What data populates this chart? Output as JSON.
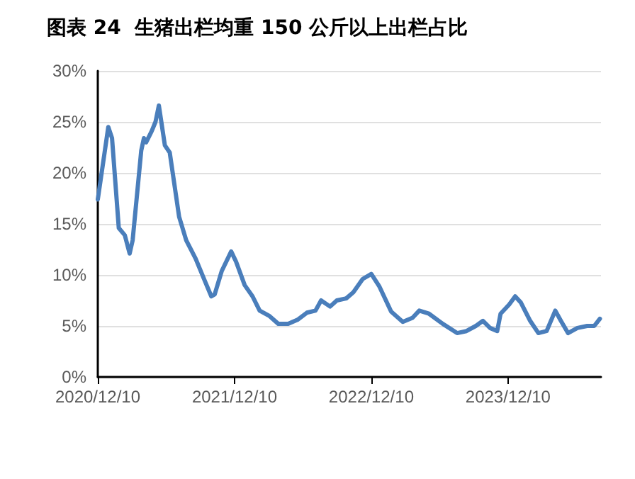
{
  "chart_data": {
    "type": "line",
    "title": "图表 24  生猪出栏均重 150 公斤以上出栏占比",
    "x": [
      "2020-12-10",
      "2021-01-07",
      "2021-01-17",
      "2021-02-04",
      "2021-02-20",
      "2021-03-05",
      "2021-03-13",
      "2021-04-05",
      "2021-04-12",
      "2021-04-18",
      "2021-05-03",
      "2021-05-13",
      "2021-05-22",
      "2021-06-07",
      "2021-06-20",
      "2021-07-15",
      "2021-08-03",
      "2021-08-28",
      "2021-09-23",
      "2021-10-09",
      "2021-10-18",
      "2021-11-06",
      "2021-12-01",
      "2021-12-14",
      "2022-01-06",
      "2022-01-27",
      "2022-02-15",
      "2022-03-12",
      "2022-04-06",
      "2022-05-02",
      "2022-05-27",
      "2022-06-21",
      "2022-07-14",
      "2022-07-29",
      "2022-08-22",
      "2022-09-09",
      "2022-10-04",
      "2022-10-23",
      "2022-11-17",
      "2022-12-10",
      "2022-12-31",
      "2023-02-01",
      "2023-03-04",
      "2023-03-30",
      "2023-04-17",
      "2023-05-13",
      "2023-06-19",
      "2023-07-27",
      "2023-08-21",
      "2023-09-15",
      "2023-10-04",
      "2023-10-23",
      "2023-11-11",
      "2023-11-20",
      "2023-12-13",
      "2023-12-29",
      "2024-01-13",
      "2024-02-07",
      "2024-02-29",
      "2024-03-22",
      "2024-04-14",
      "2024-04-29",
      "2024-05-18",
      "2024-06-12",
      "2024-07-08",
      "2024-07-27",
      "2024-08-11"
    ],
    "series": [
      {
        "color": "#4a7ebb",
        "values": [
          17.4,
          24.5,
          23.4,
          14.6,
          13.9,
          12.1,
          13.4,
          22.2,
          23.4,
          23.0,
          24.1,
          25.0,
          26.6,
          22.7,
          22.0,
          15.7,
          13.4,
          11.6,
          9.3,
          7.9,
          8.1,
          10.4,
          12.3,
          11.3,
          9.0,
          7.9,
          6.5,
          6.0,
          5.2,
          5.2,
          5.6,
          6.3,
          6.5,
          7.5,
          6.9,
          7.5,
          7.7,
          8.3,
          9.6,
          10.1,
          8.9,
          6.4,
          5.4,
          5.8,
          6.5,
          6.2,
          5.2,
          4.3,
          4.5,
          5.0,
          5.5,
          4.8,
          4.5,
          6.2,
          7.1,
          7.9,
          7.3,
          5.5,
          4.3,
          4.5,
          6.5,
          5.5,
          4.3,
          4.8,
          5.0,
          5.0,
          5.7
        ]
      }
    ],
    "xlim": [
      "2020-12-10",
      "2024-08-14"
    ],
    "xticks": [
      {
        "value": "2020-12-10",
        "label": "2020/12/10"
      },
      {
        "value": "2021-12-10",
        "label": "2021/12/10"
      },
      {
        "value": "2022-12-10",
        "label": "2022/12/10"
      },
      {
        "value": "2023-12-10",
        "label": "2023/12/10"
      }
    ],
    "ylim": [
      0,
      30
    ],
    "yticks": [
      {
        "value": 0,
        "label": "0%"
      },
      {
        "value": 5,
        "label": "5%"
      },
      {
        "value": 10,
        "label": "10%"
      },
      {
        "value": 15,
        "label": "15%"
      },
      {
        "value": 20,
        "label": "20%"
      },
      {
        "value": 25,
        "label": "25%"
      },
      {
        "value": 30,
        "label": "30%"
      }
    ],
    "grid": "y",
    "marker": "none",
    "line_style": "solid"
  }
}
